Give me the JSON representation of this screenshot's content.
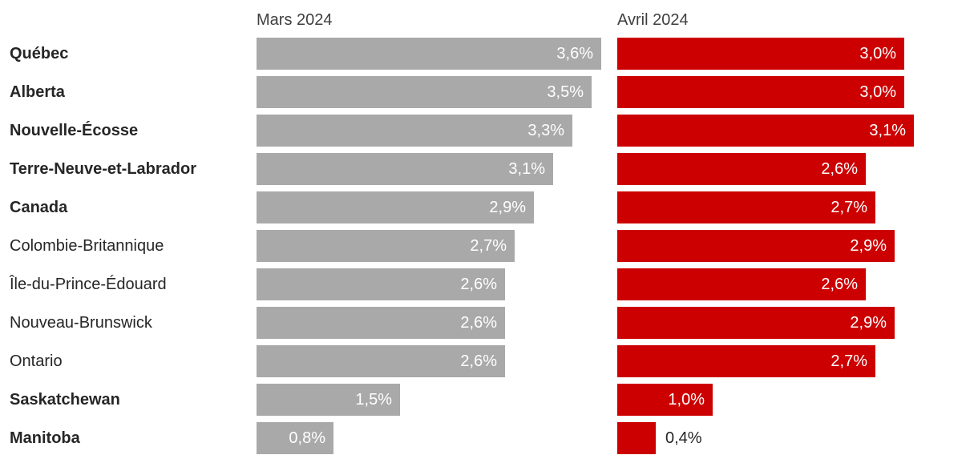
{
  "chart_data": {
    "type": "bar",
    "orientation": "horizontal",
    "unit": "%",
    "grid": false,
    "legend_position": "column-headers",
    "xlim": [
      0,
      3.77
    ],
    "categories": [
      "Québec",
      "Alberta",
      "Nouvelle-Écosse",
      "Terre-Neuve-et-Labrador",
      "Canada",
      "Colombie-Britannique",
      "Île-du-Prince-Édouard",
      "Nouveau-Brunswick",
      "Ontario",
      "Saskatchewan",
      "Manitoba"
    ],
    "bold_categories": [
      true,
      true,
      true,
      true,
      true,
      false,
      false,
      false,
      false,
      true,
      true
    ],
    "series": [
      {
        "name": "Mars 2024",
        "color": "#a9a9a9",
        "values": [
          3.6,
          3.5,
          3.3,
          3.1,
          2.9,
          2.7,
          2.6,
          2.6,
          2.6,
          1.5,
          0.8
        ],
        "labels": [
          "3,6%",
          "3,5%",
          "3,3%",
          "3,1%",
          "2,9%",
          "2,7%",
          "2,6%",
          "2,6%",
          "2,6%",
          "1,5%",
          "0,8%"
        ]
      },
      {
        "name": "Avril 2024",
        "color": "#cc0000",
        "values": [
          3.0,
          3.0,
          3.1,
          2.6,
          2.7,
          2.9,
          2.6,
          2.9,
          2.7,
          1.0,
          0.4
        ],
        "labels": [
          "3,0%",
          "3,0%",
          "3,1%",
          "2,6%",
          "2,7%",
          "2,9%",
          "2,6%",
          "2,9%",
          "2,7%",
          "1,0%",
          "0,4%"
        ]
      }
    ]
  },
  "colors": {
    "background": "#ffffff",
    "category_label": "#262626",
    "column_header": "#3f3f3f",
    "bar_value_inside": "#ffffff",
    "bar_value_outside": "#262626"
  }
}
